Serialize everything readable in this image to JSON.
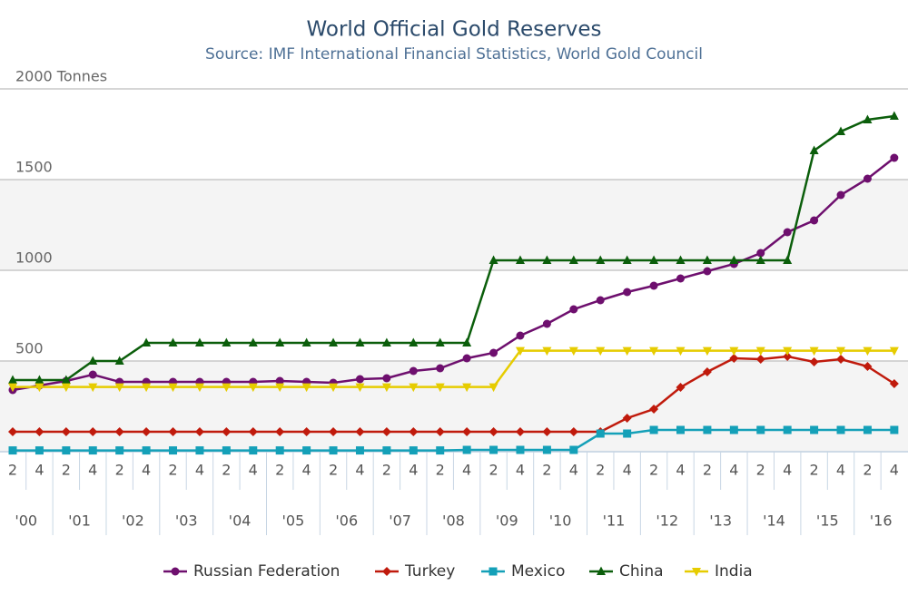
{
  "chart_data": {
    "type": "line",
    "title": "World Official Gold Reserves",
    "subtitle": "Source: IMF International Financial Statistics, World Gold Council",
    "categories": [
      "2",
      "4",
      "2",
      "4",
      "2",
      "4",
      "2",
      "4",
      "2",
      "4",
      "2",
      "4",
      "2",
      "4",
      "2",
      "4",
      "2",
      "4",
      "2",
      "4",
      "2",
      "4",
      "2",
      "4",
      "2",
      "4",
      "2",
      "4",
      "2",
      "4",
      "2",
      "4",
      "2",
      "4"
    ],
    "groups": [
      "'00",
      "'01",
      "'02",
      "'03",
      "'04",
      "'05",
      "'06",
      "'07",
      "'08",
      "'09",
      "'10",
      "'11",
      "'12",
      "'13",
      "'14",
      "'15",
      "'16"
    ],
    "ylim": [
      0,
      2000
    ],
    "yticks": [
      500,
      1000,
      1500,
      {
        "value": 2000,
        "label": "2000 Tonnes"
      }
    ],
    "grid": true,
    "legend": "bottom",
    "series": [
      {
        "name": "Russian Federation",
        "color": "#6e0f6e",
        "marker": "circle",
        "values": [
          340,
          365,
          390,
          425,
          385,
          385,
          385,
          385,
          385,
          385,
          390,
          385,
          380,
          400,
          405,
          445,
          460,
          515,
          545,
          640,
          705,
          785,
          835,
          880,
          915,
          955,
          995,
          1035,
          1095,
          1210,
          1275,
          1415,
          1505,
          1620
        ]
      },
      {
        "name": "Turkey",
        "color": "#c01a0c",
        "marker": "diamond",
        "values": [
          110,
          110,
          110,
          110,
          110,
          110,
          110,
          110,
          110,
          110,
          110,
          110,
          110,
          110,
          110,
          110,
          110,
          110,
          110,
          110,
          110,
          110,
          110,
          185,
          235,
          355,
          440,
          515,
          510,
          525,
          495,
          510,
          470,
          375
        ]
      },
      {
        "name": "Mexico",
        "color": "#14a0b8",
        "marker": "square",
        "values": [
          7,
          7,
          7,
          7,
          7,
          7,
          7,
          7,
          7,
          7,
          7,
          7,
          7,
          7,
          7,
          7,
          7,
          10,
          10,
          10,
          10,
          10,
          100,
          100,
          120,
          120,
          120,
          120,
          120,
          120,
          120,
          120,
          120,
          120
        ]
      },
      {
        "name": "China",
        "color": "#0b5e0b",
        "marker": "triangle-up",
        "values": [
          395,
          395,
          395,
          500,
          500,
          600,
          600,
          600,
          600,
          600,
          600,
          600,
          600,
          600,
          600,
          600,
          600,
          600,
          1055,
          1055,
          1055,
          1055,
          1055,
          1055,
          1055,
          1055,
          1055,
          1055,
          1055,
          1055,
          1660,
          1765,
          1830,
          1850
        ]
      },
      {
        "name": "India",
        "color": "#e6cc00",
        "marker": "triangle-down",
        "values": [
          357,
          357,
          357,
          357,
          357,
          357,
          357,
          357,
          357,
          357,
          357,
          357,
          357,
          357,
          357,
          357,
          357,
          357,
          357,
          557,
          557,
          557,
          557,
          557,
          557,
          557,
          557,
          557,
          557,
          557,
          557,
          557,
          557,
          557
        ]
      }
    ]
  }
}
